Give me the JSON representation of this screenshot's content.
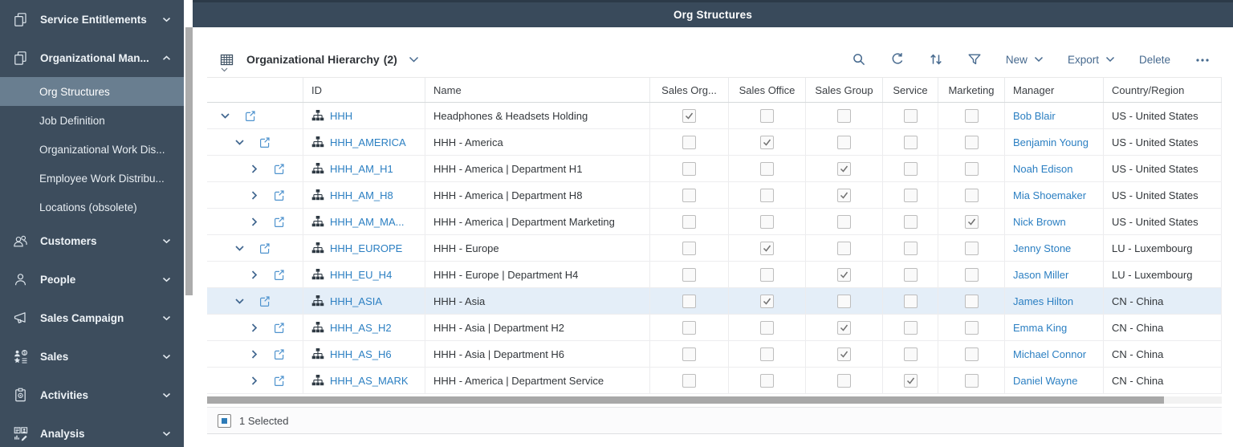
{
  "app": {
    "top_bar_title": "Org Structures"
  },
  "sidebar": {
    "items": [
      {
        "label": "Service Entitlements",
        "type": "group",
        "icon": "stack",
        "chevron": "down"
      },
      {
        "label": "Organizational Man...",
        "type": "group",
        "icon": "stack",
        "chevron": "up"
      },
      {
        "label": "Org Structures",
        "type": "sub",
        "selected": true
      },
      {
        "label": "Job Definition",
        "type": "sub"
      },
      {
        "label": "Organizational Work Dis...",
        "type": "sub"
      },
      {
        "label": "Employee Work Distribu...",
        "type": "sub"
      },
      {
        "label": "Locations (obsolete)",
        "type": "sub"
      },
      {
        "label": "Customers",
        "type": "group",
        "icon": "customers",
        "chevron": "down"
      },
      {
        "label": "People",
        "type": "group",
        "icon": "person",
        "chevron": "down"
      },
      {
        "label": "Sales Campaign",
        "type": "group",
        "icon": "megaphone",
        "chevron": "down"
      },
      {
        "label": "Sales",
        "type": "group",
        "icon": "sales",
        "chevron": "down"
      },
      {
        "label": "Activities",
        "type": "group",
        "icon": "clipboard",
        "chevron": "down"
      },
      {
        "label": "Analysis",
        "type": "group",
        "icon": "analysis",
        "chevron": "down"
      }
    ]
  },
  "toolbar": {
    "title": "Organizational Hierarchy",
    "count": "(2)",
    "new_label": "New",
    "export_label": "Export",
    "delete_label": "Delete"
  },
  "table": {
    "columns": [
      "",
      "ID",
      "Name",
      "Sales Org...",
      "Sales Office",
      "Sales Group",
      "Service",
      "Marketing",
      "Manager",
      "Country/Region"
    ],
    "rows": [
      {
        "level": 0,
        "expanded": true,
        "id": "HHH",
        "name": "Headphones & Headsets Holding",
        "sales_org": true,
        "sales_office": false,
        "sales_group": false,
        "service": false,
        "marketing": false,
        "manager": "Bob Blair",
        "country": "US - United States",
        "selected": false
      },
      {
        "level": 1,
        "expanded": true,
        "id": "HHH_AMERICA",
        "name": "HHH - America",
        "sales_org": false,
        "sales_office": true,
        "sales_group": false,
        "service": false,
        "marketing": false,
        "manager": "Benjamin Young",
        "country": "US - United States",
        "selected": false
      },
      {
        "level": 2,
        "expanded": false,
        "id": "HHH_AM_H1",
        "name": "HHH - America | Department H1",
        "sales_org": false,
        "sales_office": false,
        "sales_group": true,
        "service": false,
        "marketing": false,
        "manager": "Noah Edison",
        "country": "US - United States",
        "selected": false
      },
      {
        "level": 2,
        "expanded": false,
        "id": "HHH_AM_H8",
        "name": "HHH - America | Department H8",
        "sales_org": false,
        "sales_office": false,
        "sales_group": true,
        "service": false,
        "marketing": false,
        "manager": "Mia Shoemaker",
        "country": "US - United States",
        "selected": false
      },
      {
        "level": 2,
        "expanded": false,
        "id": "HHH_AM_MA...",
        "name": "HHH - America | Department Marketing",
        "sales_org": false,
        "sales_office": false,
        "sales_group": false,
        "service": false,
        "marketing": true,
        "manager": "Nick Brown",
        "country": "US - United States",
        "selected": false
      },
      {
        "level": 1,
        "expanded": true,
        "id": "HHH_EUROPE",
        "name": "HHH - Europe",
        "sales_org": false,
        "sales_office": true,
        "sales_group": false,
        "service": false,
        "marketing": false,
        "manager": "Jenny Stone",
        "country": "LU - Luxembourg",
        "selected": false
      },
      {
        "level": 2,
        "expanded": false,
        "id": "HHH_EU_H4",
        "name": "HHH - Europe | Department H4",
        "sales_org": false,
        "sales_office": false,
        "sales_group": true,
        "service": false,
        "marketing": false,
        "manager": "Jason Miller",
        "country": "LU - Luxembourg",
        "selected": false
      },
      {
        "level": 1,
        "expanded": true,
        "id": "HHH_ASIA",
        "name": "HHH - Asia",
        "sales_org": false,
        "sales_office": true,
        "sales_group": false,
        "service": false,
        "marketing": false,
        "manager": "James Hilton",
        "country": "CN - China",
        "selected": true
      },
      {
        "level": 2,
        "expanded": false,
        "id": "HHH_AS_H2",
        "name": "HHH - Asia | Department H2",
        "sales_org": false,
        "sales_office": false,
        "sales_group": true,
        "service": false,
        "marketing": false,
        "manager": "Emma King",
        "country": "CN - China",
        "selected": false
      },
      {
        "level": 2,
        "expanded": false,
        "id": "HHH_AS_H6",
        "name": "HHH - Asia | Department H6",
        "sales_org": false,
        "sales_office": false,
        "sales_group": true,
        "service": false,
        "marketing": false,
        "manager": "Michael Connor",
        "country": "CN - China",
        "selected": false
      },
      {
        "level": 2,
        "expanded": false,
        "id": "HHH_AS_MARK",
        "name": "HHH - America | Department Service",
        "sales_org": false,
        "sales_office": false,
        "sales_group": false,
        "service": true,
        "marketing": false,
        "manager": "Daniel Wayne",
        "country": "CN - China",
        "selected": false
      }
    ]
  },
  "footer": {
    "selected_count": "1 Selected"
  },
  "colors": {
    "sidebar_bg": "#3d4d5d",
    "sidebar_selected_bg": "#697e90",
    "topbar_bg": "#394a5b",
    "link_blue": "#2b7fc2",
    "toolbar_icon_blue": "#46698e",
    "selected_row_bg": "#e4eef8",
    "scrollbar_gray": "#a8a8a8"
  }
}
